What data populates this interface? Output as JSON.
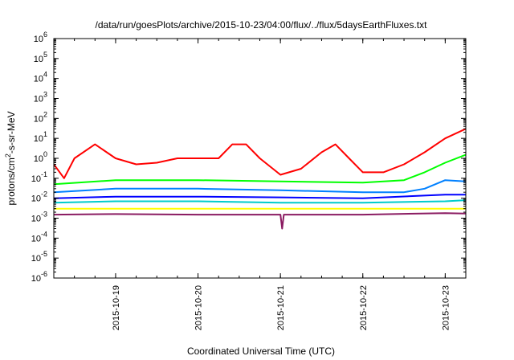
{
  "chart_data": {
    "type": "line",
    "title": "/data/run/goesPlots/archive/2015-10-23/04:00/flux/../flux/5daysEarthFluxes.txt",
    "xlabel": "Coordinated Universal Time (UTC)",
    "ylabel": "protons/cm2-s-sr-MeV",
    "ylabel_parts": {
      "pre": "protons/cm",
      "sup": "2",
      "post": "-s-sr-MeV"
    },
    "yscale": "log",
    "ylim": [
      1e-06,
      1000000.0
    ],
    "ytick_labels": [
      {
        "value": 1e-06,
        "base": "10",
        "exp": "-6"
      },
      {
        "value": 1e-05,
        "base": "10",
        "exp": "-5"
      },
      {
        "value": 0.0001,
        "base": "10",
        "exp": "-4"
      },
      {
        "value": 0.001,
        "base": "10",
        "exp": "-3"
      },
      {
        "value": 0.01,
        "base": "10",
        "exp": "-2"
      },
      {
        "value": 0.1,
        "base": "10",
        "exp": "-1"
      },
      {
        "value": 1.0,
        "base": "10",
        "exp": "0"
      },
      {
        "value": 10.0,
        "base": "10",
        "exp": "1"
      },
      {
        "value": 100.0,
        "base": "10",
        "exp": "2"
      },
      {
        "value": 1000.0,
        "base": "10",
        "exp": "3"
      },
      {
        "value": 10000.0,
        "base": "10",
        "exp": "4"
      },
      {
        "value": 100000.0,
        "base": "10",
        "exp": "5"
      },
      {
        "value": 1000000.0,
        "base": "10",
        "exp": "6"
      }
    ],
    "xlim": [
      "2015-10-18T06:00",
      "2015-10-23T06:00"
    ],
    "xticks": [
      {
        "date": "2015-10-19T00:00",
        "label": "2015-10-19"
      },
      {
        "date": "2015-10-20T00:00",
        "label": "2015-10-20"
      },
      {
        "date": "2015-10-21T00:00",
        "label": "2015-10-21"
      },
      {
        "date": "2015-10-22T00:00",
        "label": "2015-10-22"
      },
      {
        "date": "2015-10-23T00:00",
        "label": "2015-10-23"
      }
    ],
    "grid": false,
    "legend": false,
    "series": [
      {
        "color": "#ff0000",
        "x": [
          "2015-10-18T06:00",
          "2015-10-18T09:00",
          "2015-10-18T12:00",
          "2015-10-18T18:00",
          "2015-10-19T00:00",
          "2015-10-19T06:00",
          "2015-10-19T12:00",
          "2015-10-19T18:00",
          "2015-10-20T00:00",
          "2015-10-20T06:00",
          "2015-10-20T10:00",
          "2015-10-20T14:00",
          "2015-10-20T18:00",
          "2015-10-21T00:00",
          "2015-10-21T06:00",
          "2015-10-21T12:00",
          "2015-10-21T16:00",
          "2015-10-21T20:00",
          "2015-10-22T00:00",
          "2015-10-22T06:00",
          "2015-10-22T12:00",
          "2015-10-22T18:00",
          "2015-10-23T00:00",
          "2015-10-23T06:00"
        ],
        "values": [
          0.5,
          0.1,
          1.0,
          5.0,
          1.0,
          0.5,
          0.6,
          1.0,
          1.0,
          1.0,
          5.0,
          5.0,
          1.0,
          0.15,
          0.3,
          2.0,
          5.0,
          1.0,
          0.2,
          0.2,
          0.5,
          2.0,
          10,
          30
        ]
      },
      {
        "color": "#00ff00",
        "x": [
          "2015-10-18T06:00",
          "2015-10-19T00:00",
          "2015-10-20T00:00",
          "2015-10-21T00:00",
          "2015-10-22T00:00",
          "2015-10-22T12:00",
          "2015-10-22T18:00",
          "2015-10-23T00:00",
          "2015-10-23T06:00"
        ],
        "values": [
          0.05,
          0.08,
          0.08,
          0.07,
          0.06,
          0.08,
          0.2,
          0.6,
          1.5
        ]
      },
      {
        "color": "#0080ff",
        "x": [
          "2015-10-18T06:00",
          "2015-10-19T00:00",
          "2015-10-20T00:00",
          "2015-10-21T00:00",
          "2015-10-22T00:00",
          "2015-10-22T12:00",
          "2015-10-22T18:00",
          "2015-10-23T00:00",
          "2015-10-23T06:00"
        ],
        "values": [
          0.02,
          0.03,
          0.03,
          0.025,
          0.02,
          0.02,
          0.03,
          0.08,
          0.07
        ]
      },
      {
        "color": "#0000ff",
        "x": [
          "2015-10-18T06:00",
          "2015-10-19T00:00",
          "2015-10-20T00:00",
          "2015-10-21T00:00",
          "2015-10-22T00:00",
          "2015-10-23T00:00",
          "2015-10-23T06:00"
        ],
        "values": [
          0.01,
          0.012,
          0.012,
          0.011,
          0.01,
          0.015,
          0.015
        ]
      },
      {
        "color": "#00cccc",
        "x": [
          "2015-10-18T06:00",
          "2015-10-19T00:00",
          "2015-10-20T00:00",
          "2015-10-21T00:00",
          "2015-10-22T00:00",
          "2015-10-23T00:00",
          "2015-10-23T06:00"
        ],
        "values": [
          0.006,
          0.007,
          0.007,
          0.006,
          0.006,
          0.007,
          0.008
        ]
      },
      {
        "color": "#ffff00",
        "x": [
          "2015-10-18T06:00",
          "2015-10-19T00:00",
          "2015-10-20T00:00",
          "2015-10-21T00:00",
          "2015-10-22T00:00",
          "2015-10-23T00:00",
          "2015-10-23T06:00"
        ],
        "values": [
          0.003,
          0.003,
          0.003,
          0.003,
          0.003,
          0.003,
          0.003
        ]
      },
      {
        "color": "#8b1c62",
        "x": [
          "2015-10-18T06:00",
          "2015-10-19T00:00",
          "2015-10-20T00:00",
          "2015-10-21T00:00",
          "2015-10-21T00:30",
          "2015-10-21T01:00",
          "2015-10-22T00:00",
          "2015-10-23T00:00",
          "2015-10-23T06:00"
        ],
        "values": [
          0.0015,
          0.0016,
          0.0015,
          0.0015,
          0.0003,
          0.0015,
          0.0015,
          0.0018,
          0.0017
        ]
      }
    ]
  }
}
